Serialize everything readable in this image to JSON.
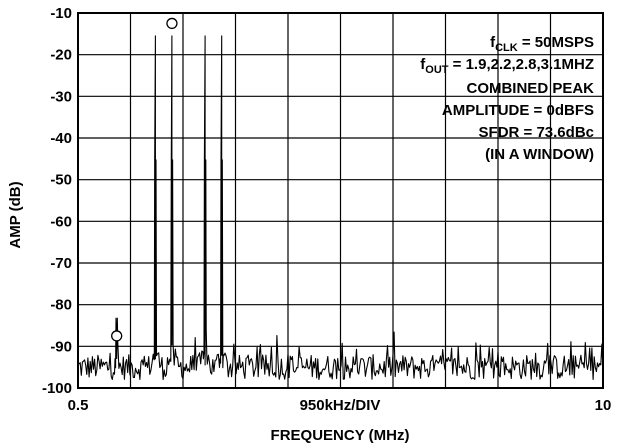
{
  "chart_data": {
    "type": "line",
    "title": "",
    "xlabel": "FREQUENCY (MHz)",
    "ylabel": "AMP (dB)",
    "x_range_mhz": [
      0.5,
      10
    ],
    "ylim": [
      -100,
      -10
    ],
    "x_tick_labels": [
      "0.5",
      "950kHz/DIV",
      "10"
    ],
    "y_ticks": [
      -10,
      -20,
      -30,
      -40,
      -50,
      -60,
      -70,
      -80,
      -90,
      -100
    ],
    "grid": true,
    "x_divisions": 10,
    "noise_floor_db": -95,
    "tones": [
      {
        "x": 1.9,
        "y": -15.5
      },
      {
        "x": 2.2,
        "y": -15.5
      },
      {
        "x": 2.8,
        "y": -15.5
      },
      {
        "x": 3.1,
        "y": -15.5
      }
    ],
    "markers": [
      {
        "x": 2.2,
        "y": -12.5
      },
      {
        "x": 1.2,
        "y": -87.5
      }
    ],
    "spur": {
      "x": 1.2,
      "y": -91.5
    },
    "annotation": {
      "fclk": {
        "main": "f",
        "sub": "CLK",
        "rest": " = 50MSPS"
      },
      "fout": {
        "main": "f",
        "sub": "OUT",
        "rest": " = 1.9,2.2,2.8,3.1MHZ"
      },
      "lines": [
        "COMBINED PEAK",
        "AMPLITUDE = 0dBFS",
        "SFDR = 73.6dBc",
        "(IN A WINDOW)"
      ]
    }
  }
}
